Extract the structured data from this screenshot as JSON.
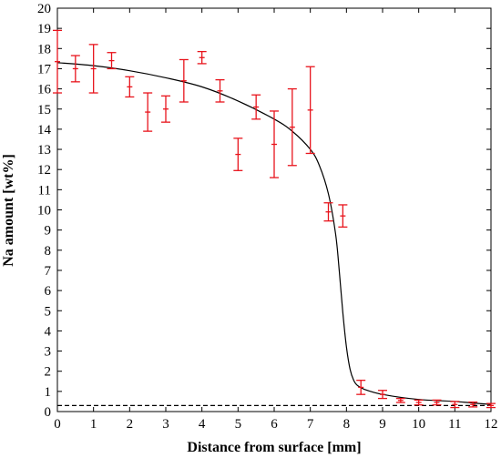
{
  "chart_data": {
    "type": "scatter",
    "title": "",
    "xlabel": "Distance from surface [mm]",
    "ylabel": "Na amount [wt%]",
    "xlim": [
      0,
      12
    ],
    "ylim": [
      0,
      20
    ],
    "x_ticks": [
      0,
      1,
      2,
      3,
      4,
      5,
      6,
      7,
      8,
      9,
      10,
      11,
      12
    ],
    "y_ticks": [
      0,
      1,
      2,
      3,
      4,
      5,
      6,
      7,
      8,
      9,
      10,
      11,
      12,
      13,
      14,
      15,
      16,
      17,
      18,
      19,
      20
    ],
    "grid": false,
    "colors": {
      "measured": "#e8141c",
      "fit": "#000000",
      "baseline": "#000000"
    },
    "series": [
      {
        "kind": "points_with_error_bars",
        "points": [
          {
            "x": 0.0,
            "y": 17.35,
            "err": 1.55
          },
          {
            "x": 0.5,
            "y": 17.0,
            "err": 0.65
          },
          {
            "x": 1.0,
            "y": 17.0,
            "err": 1.2
          },
          {
            "x": 1.5,
            "y": 17.4,
            "err": 0.4
          },
          {
            "x": 2.0,
            "y": 16.1,
            "err": 0.5
          },
          {
            "x": 2.5,
            "y": 14.85,
            "err": 0.95
          },
          {
            "x": 3.0,
            "y": 15.0,
            "err": 0.65
          },
          {
            "x": 3.5,
            "y": 16.4,
            "err": 1.05
          },
          {
            "x": 4.0,
            "y": 17.55,
            "err": 0.3
          },
          {
            "x": 4.5,
            "y": 15.9,
            "err": 0.55
          },
          {
            "x": 5.0,
            "y": 12.75,
            "err": 0.8
          },
          {
            "x": 5.5,
            "y": 15.1,
            "err": 0.6
          },
          {
            "x": 6.0,
            "y": 13.25,
            "err": 1.65
          },
          {
            "x": 6.5,
            "y": 14.1,
            "err": 1.9
          },
          {
            "x": 7.0,
            "y": 14.95,
            "err": 2.15
          },
          {
            "x": 7.5,
            "y": 9.9,
            "err": 0.45
          },
          {
            "x": 7.9,
            "y": 9.7,
            "err": 0.55
          },
          {
            "x": 8.4,
            "y": 1.2,
            "err": 0.35
          },
          {
            "x": 9.0,
            "y": 0.85,
            "err": 0.2
          },
          {
            "x": 9.5,
            "y": 0.55,
            "err": 0.1
          },
          {
            "x": 10.0,
            "y": 0.45,
            "err": 0.12
          },
          {
            "x": 10.5,
            "y": 0.45,
            "err": 0.12
          },
          {
            "x": 11.0,
            "y": 0.35,
            "err": 0.15
          },
          {
            "x": 11.5,
            "y": 0.35,
            "err": 0.12
          },
          {
            "x": 12.0,
            "y": 0.3,
            "err": 0.1
          }
        ]
      },
      {
        "kind": "fit_curve",
        "x": [
          0,
          1,
          2,
          3,
          4,
          5,
          6,
          6.5,
          7,
          7.25,
          7.5,
          7.7,
          7.8,
          7.9,
          8.0,
          8.1,
          8.2,
          8.3,
          8.5,
          9,
          10,
          11,
          12
        ],
        "y": [
          17.3,
          17.15,
          16.9,
          16.55,
          16.1,
          15.4,
          14.5,
          13.9,
          13.0,
          12.2,
          10.8,
          8.8,
          7.0,
          4.9,
          3.2,
          2.1,
          1.55,
          1.3,
          1.1,
          0.85,
          0.6,
          0.5,
          0.35
        ]
      },
      {
        "kind": "baseline",
        "style": "dashed",
        "y": 0.3
      }
    ]
  }
}
